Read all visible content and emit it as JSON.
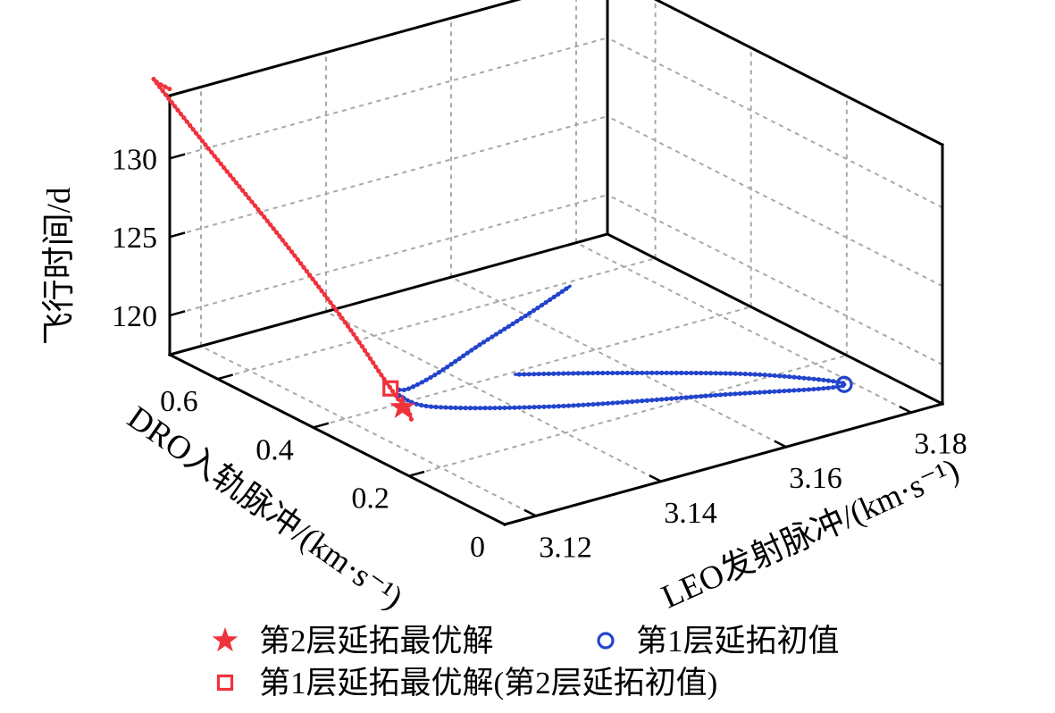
{
  "chart_data": {
    "type": "line3d",
    "xlabel": "LEO发射脉冲/(km·s⁻¹)",
    "ylabel": "DRO入轨脉冲/(km·s⁻¹)",
    "zlabel": "飞行时间/d",
    "xlim": [
      3.115,
      3.185
    ],
    "ylim": [
      0,
      0.7
    ],
    "zlim": [
      117.5,
      134
    ],
    "x_ticks": [
      "3.12",
      "3.14",
      "3.16",
      "3.18"
    ],
    "y_ticks": [
      "0",
      "0.2",
      "0.4",
      "0.6"
    ],
    "z_ticks": [
      "120",
      "125",
      "130"
    ],
    "grid": true,
    "legend_position": "bottom",
    "series": [
      {
        "name": "第2层延拓最优解",
        "color": "#f0323c",
        "style": "dotted-line",
        "points": [
          [
            3.1165,
            0.72,
            133.95
          ],
          [
            3.1163,
            0.74,
            134.0
          ],
          [
            3.1168,
            0.75,
            133.8
          ],
          [
            3.1178,
            0.66,
            131.1
          ],
          [
            3.1195,
            0.53,
            127.2
          ],
          [
            3.1207,
            0.41,
            123.5
          ],
          [
            3.1214,
            0.34,
            121.0
          ],
          [
            3.1216,
            0.32,
            120.3
          ],
          [
            3.1217,
            0.31,
            119.95
          ],
          [
            3.1216,
            0.29,
            119.7
          ],
          [
            3.1215,
            0.28,
            119.15
          ]
        ]
      },
      {
        "name": "第1层延拓初值",
        "color": "#2244cc",
        "style": "dotted-line",
        "points": [
          [
            3.1226,
            0.32,
            120.3
          ],
          [
            3.1235,
            0.31,
            120.45
          ],
          [
            3.1265,
            0.29,
            121.4
          ],
          [
            3.131,
            0.26,
            123.2
          ],
          [
            3.136,
            0.22,
            125.3
          ],
          [
            3.14,
            0.19,
            127.0
          ]
        ]
      },
      {
        "name": "第1层延拓初值",
        "color": "#2244cc",
        "style": "dotted-line",
        "points": [
          [
            3.1226,
            0.32,
            119.95
          ],
          [
            3.126,
            0.29,
            119.3
          ],
          [
            3.14,
            0.21,
            119.05
          ],
          [
            3.16,
            0.12,
            119.0
          ],
          [
            3.171,
            0.066,
            119.0
          ],
          [
            3.1735,
            0.055,
            119.2
          ],
          [
            3.17,
            0.085,
            119.45
          ],
          [
            3.163,
            0.145,
            119.6
          ],
          [
            3.15,
            0.24,
            119.6
          ],
          [
            3.14,
            0.305,
            119.6
          ]
        ]
      }
    ],
    "markers": [
      {
        "name": "第1层延拓初值",
        "symbol": "circle",
        "color": "#2244cc",
        "point": [
          3.1735,
          0.055,
          119.15
        ]
      },
      {
        "name": "第1层延拓最优解(第2层延拓初值)",
        "symbol": "square",
        "color": "#f0323c",
        "point": [
          3.122,
          0.33,
          120.3
        ]
      },
      {
        "name": "第2层延拓最优解",
        "symbol": "star",
        "color": "#f0323c",
        "point": [
          3.1216,
          0.3,
          119.6
        ]
      }
    ],
    "legend": [
      {
        "symbol": "star",
        "color": "#f0323c",
        "label": "第2层延拓最优解"
      },
      {
        "symbol": "circle",
        "color": "#2244cc",
        "label": "第1层延拓初值"
      },
      {
        "symbol": "square",
        "color": "#f0323c",
        "label": "第1层延拓最优解(第2层延拓初值)"
      }
    ]
  }
}
